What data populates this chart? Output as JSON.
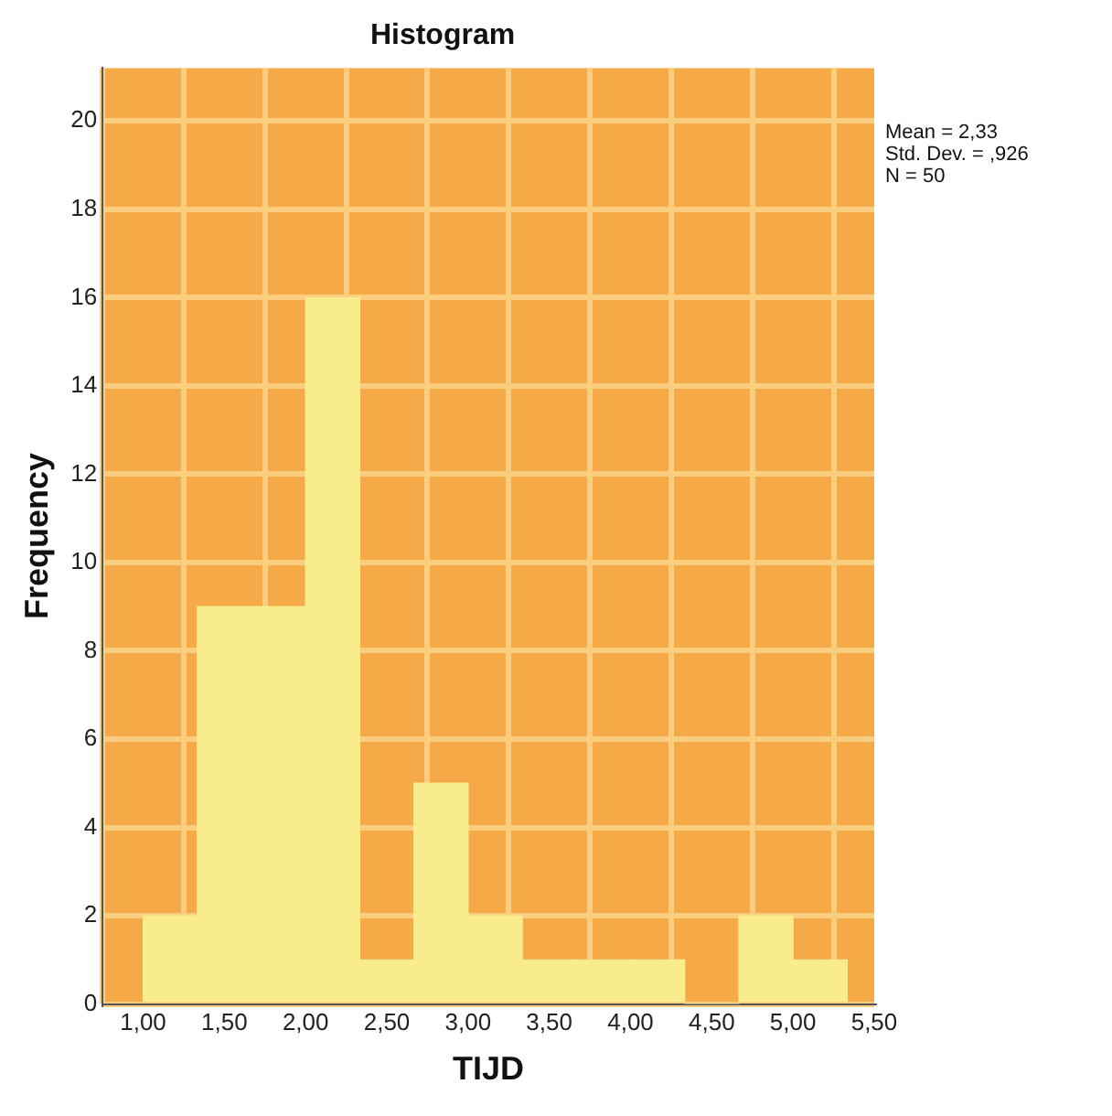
{
  "chart_data": {
    "type": "histogram",
    "title": "Histogram",
    "xlabel": "TIJD",
    "ylabel": "Frequency",
    "bins": [
      1,
      1.333,
      1.667,
      2,
      2.333,
      2.667,
      3,
      3.333,
      3.667,
      4,
      4.333,
      4.667,
      5,
      5.333
    ],
    "values": [
      2,
      9,
      9,
      16,
      1,
      5,
      2,
      1,
      1,
      1,
      0,
      2,
      1
    ],
    "color": "#f8ec8c",
    "xlim": [
      0.75,
      5.5
    ],
    "xticks": [
      {
        "value": 1,
        "label": "1,00"
      },
      {
        "value": 1.5,
        "label": "1,50"
      },
      {
        "value": 2,
        "label": "2,00"
      },
      {
        "value": 2.5,
        "label": "2,50"
      },
      {
        "value": 3,
        "label": "3,00"
      },
      {
        "value": 3.5,
        "label": "3,50"
      },
      {
        "value": 4,
        "label": "4,00"
      },
      {
        "value": 4.5,
        "label": "4,50"
      },
      {
        "value": 5,
        "label": "5,00"
      },
      {
        "value": 5.5,
        "label": "5,50"
      }
    ],
    "ylim": [
      0,
      21.2
    ],
    "yticks": [
      0,
      2,
      4,
      6,
      8,
      10,
      12,
      14,
      16,
      18,
      20
    ],
    "grid": true,
    "annotations": [
      "Mean = 2,33",
      "Std. Dev. = ,926",
      "N = 50"
    ]
  }
}
